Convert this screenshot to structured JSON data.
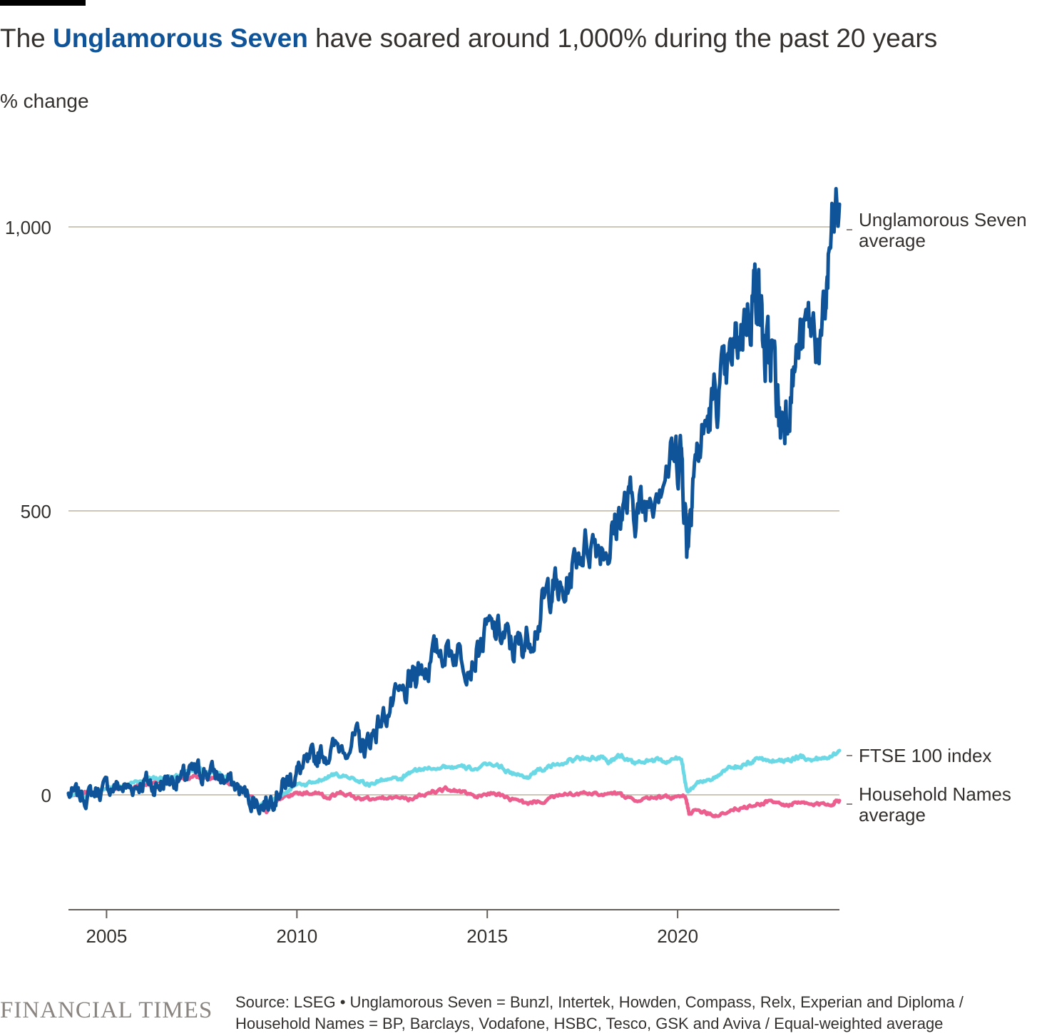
{
  "title": {
    "prefix": "The ",
    "highlight": "Unglamorous Seven",
    "suffix": " have soared around 1,000% during the past 20 years"
  },
  "chart_data": {
    "type": "line",
    "title": "The Unglamorous Seven have soared around 1,000% during the past 20 years",
    "ylabel": "% change",
    "xlabel": "",
    "xlim": [
      2004.0,
      2024.25
    ],
    "ylim": [
      -200,
      1000
    ],
    "yticks": [
      0,
      500,
      1000
    ],
    "ytick_labels": [
      "0",
      "500",
      "1,000"
    ],
    "xticks": [
      2005,
      2010,
      2015,
      2020
    ],
    "xtick_labels": [
      "2005",
      "2010",
      "2015",
      "2020"
    ],
    "grid": true,
    "series": [
      {
        "name": "Unglamorous Seven average",
        "label_lines": [
          "Unglamorous Seven",
          "average"
        ],
        "color": "#0f5499",
        "points": [
          [
            2004.0,
            0
          ],
          [
            2004.4,
            -3
          ],
          [
            2004.8,
            8
          ],
          [
            2005.2,
            15
          ],
          [
            2005.6,
            12
          ],
          [
            2006.0,
            25
          ],
          [
            2006.3,
            14
          ],
          [
            2006.6,
            28
          ],
          [
            2007.0,
            28
          ],
          [
            2007.3,
            38
          ],
          [
            2007.6,
            42
          ],
          [
            2008.0,
            32
          ],
          [
            2008.4,
            14
          ],
          [
            2008.8,
            -8
          ],
          [
            2009.1,
            -18
          ],
          [
            2009.4,
            0
          ],
          [
            2009.7,
            20
          ],
          [
            2010.0,
            40
          ],
          [
            2010.3,
            52
          ],
          [
            2010.6,
            72
          ],
          [
            2011.0,
            80
          ],
          [
            2011.5,
            100
          ],
          [
            2011.8,
            82
          ],
          [
            2012.1,
            120
          ],
          [
            2012.5,
            158
          ],
          [
            2012.9,
            178
          ],
          [
            2013.1,
            220
          ],
          [
            2013.4,
            228
          ],
          [
            2013.8,
            258
          ],
          [
            2014.2,
            255
          ],
          [
            2014.6,
            236
          ],
          [
            2015.0,
            288
          ],
          [
            2015.4,
            282
          ],
          [
            2015.7,
            258
          ],
          [
            2016.0,
            270
          ],
          [
            2016.4,
            318
          ],
          [
            2016.7,
            375
          ],
          [
            2017.0,
            345
          ],
          [
            2017.4,
            432
          ],
          [
            2017.8,
            450
          ],
          [
            2018.2,
            438
          ],
          [
            2018.5,
            500
          ],
          [
            2018.8,
            512
          ],
          [
            2019.1,
            500
          ],
          [
            2019.5,
            568
          ],
          [
            2019.9,
            590
          ],
          [
            2020.1,
            605
          ],
          [
            2020.25,
            440
          ],
          [
            2020.4,
            570
          ],
          [
            2020.7,
            640
          ],
          [
            2021.0,
            700
          ],
          [
            2021.3,
            730
          ],
          [
            2021.6,
            810
          ],
          [
            2021.9,
            860
          ],
          [
            2022.1,
            910
          ],
          [
            2022.3,
            765
          ],
          [
            2022.5,
            775
          ],
          [
            2022.7,
            648
          ],
          [
            2022.9,
            700
          ],
          [
            2023.2,
            790
          ],
          [
            2023.5,
            830
          ],
          [
            2023.8,
            790
          ],
          [
            2024.0,
            960
          ],
          [
            2024.25,
            1040
          ]
        ]
      },
      {
        "name": "FTSE 100 index",
        "label_lines": [
          "FTSE 100 index"
        ],
        "color": "#6ad9e5",
        "points": [
          [
            2004.0,
            0
          ],
          [
            2004.5,
            -3
          ],
          [
            2005.0,
            10
          ],
          [
            2005.5,
            15
          ],
          [
            2006.0,
            28
          ],
          [
            2006.3,
            30
          ],
          [
            2006.7,
            28
          ],
          [
            2007.0,
            38
          ],
          [
            2007.4,
            44
          ],
          [
            2007.8,
            35
          ],
          [
            2008.2,
            30
          ],
          [
            2008.6,
            5
          ],
          [
            2008.9,
            -18
          ],
          [
            2009.2,
            -15
          ],
          [
            2009.6,
            2
          ],
          [
            2009.9,
            15
          ],
          [
            2010.3,
            18
          ],
          [
            2010.7,
            30
          ],
          [
            2011.0,
            35
          ],
          [
            2011.5,
            30
          ],
          [
            2011.9,
            18
          ],
          [
            2012.3,
            28
          ],
          [
            2012.7,
            26
          ],
          [
            2013.0,
            40
          ],
          [
            2013.5,
            48
          ],
          [
            2013.9,
            50
          ],
          [
            2014.3,
            48
          ],
          [
            2014.7,
            46
          ],
          [
            2015.2,
            55
          ],
          [
            2015.6,
            40
          ],
          [
            2016.0,
            30
          ],
          [
            2016.3,
            42
          ],
          [
            2016.7,
            50
          ],
          [
            2017.1,
            60
          ],
          [
            2017.5,
            65
          ],
          [
            2017.9,
            66
          ],
          [
            2018.2,
            58
          ],
          [
            2018.5,
            70
          ],
          [
            2018.9,
            55
          ],
          [
            2019.3,
            62
          ],
          [
            2019.7,
            58
          ],
          [
            2020.1,
            65
          ],
          [
            2020.25,
            5
          ],
          [
            2020.6,
            25
          ],
          [
            2021.0,
            30
          ],
          [
            2021.4,
            48
          ],
          [
            2021.8,
            52
          ],
          [
            2022.1,
            65
          ],
          [
            2022.5,
            60
          ],
          [
            2022.9,
            62
          ],
          [
            2023.2,
            68
          ],
          [
            2023.6,
            62
          ],
          [
            2023.9,
            66
          ],
          [
            2024.25,
            78
          ]
        ]
      },
      {
        "name": "Household Names average",
        "label_lines": [
          "Household Names",
          "average"
        ],
        "color": "#eb5e8d",
        "points": [
          [
            2004.0,
            0
          ],
          [
            2004.5,
            5
          ],
          [
            2005.0,
            10
          ],
          [
            2005.5,
            12
          ],
          [
            2006.0,
            18
          ],
          [
            2006.5,
            20
          ],
          [
            2007.0,
            28
          ],
          [
            2007.4,
            32
          ],
          [
            2007.8,
            30
          ],
          [
            2008.3,
            20
          ],
          [
            2008.8,
            -5
          ],
          [
            2009.2,
            -28
          ],
          [
            2009.5,
            -8
          ],
          [
            2009.9,
            0
          ],
          [
            2010.4,
            5
          ],
          [
            2010.8,
            -5
          ],
          [
            2011.2,
            4
          ],
          [
            2011.6,
            -6
          ],
          [
            2012.0,
            -8
          ],
          [
            2012.5,
            -5
          ],
          [
            2013.0,
            -8
          ],
          [
            2013.5,
            5
          ],
          [
            2013.9,
            10
          ],
          [
            2014.3,
            6
          ],
          [
            2014.7,
            -5
          ],
          [
            2015.2,
            4
          ],
          [
            2015.6,
            -8
          ],
          [
            2016.0,
            -15
          ],
          [
            2016.5,
            -10
          ],
          [
            2017.0,
            0
          ],
          [
            2017.5,
            2
          ],
          [
            2018.0,
            0
          ],
          [
            2018.4,
            2
          ],
          [
            2018.8,
            -10
          ],
          [
            2019.3,
            -5
          ],
          [
            2019.8,
            -5
          ],
          [
            2020.2,
            -4
          ],
          [
            2020.3,
            -30
          ],
          [
            2020.7,
            -28
          ],
          [
            2021.0,
            -36
          ],
          [
            2021.5,
            -25
          ],
          [
            2022.0,
            -20
          ],
          [
            2022.4,
            -10
          ],
          [
            2022.8,
            -18
          ],
          [
            2023.2,
            -15
          ],
          [
            2023.6,
            -18
          ],
          [
            2024.0,
            -15
          ],
          [
            2024.25,
            -10
          ]
        ]
      }
    ]
  },
  "source": {
    "line1": "Source: LSEG • Unglamorous Seven = Bunzl, Intertek, Howden, Compass, Relx, Experian and Diploma /",
    "line2": "Household Names = BP, Barclays, Vodafone, HSBC, Tesco, GSK and Aviva / Equal-weighted average"
  },
  "brand": "FINANCIAL TIMES",
  "colors": {
    "text": "#33302e",
    "highlight": "#0f5499",
    "gridline": "#cec6b9",
    "axis": "#66605c"
  }
}
